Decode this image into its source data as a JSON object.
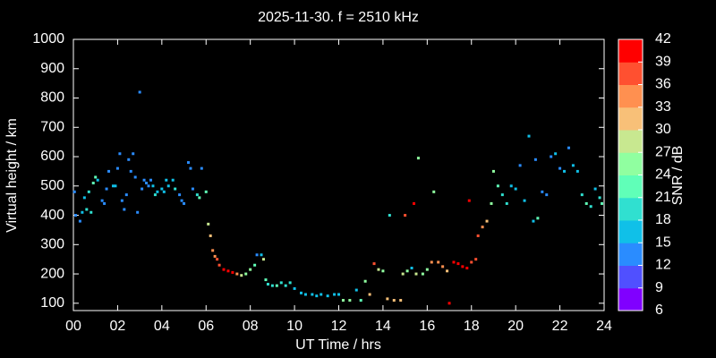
{
  "chart_data": {
    "type": "scatter",
    "title": "2025-11-30. f = 2510 kHz",
    "x_label": "UT Time / hrs",
    "y_label": "Virtual height / km",
    "colorbar_label": "SNR / dB",
    "xlim": [
      0,
      24
    ],
    "xticks": [
      {
        "value": 0,
        "label": "00"
      },
      {
        "value": 2,
        "label": "02"
      },
      {
        "value": 4,
        "label": "04"
      },
      {
        "value": 6,
        "label": "06"
      },
      {
        "value": 8,
        "label": "08"
      },
      10,
      12,
      14,
      16,
      18,
      20,
      22,
      24
    ],
    "ylim": [
      75,
      1000
    ],
    "yticks": [
      100,
      200,
      300,
      400,
      500,
      600,
      700,
      800,
      900,
      1000
    ],
    "clim": [
      6,
      42
    ],
    "cticks": [
      6,
      9,
      12,
      15,
      18,
      21,
      24,
      27,
      30,
      33,
      36,
      39,
      42
    ],
    "colormap": [
      "#8000ff",
      "#5050ff",
      "#2a8cff",
      "#10c0e8",
      "#30e0d0",
      "#60ffb8",
      "#90ffa0",
      "#c8e890",
      "#f8c078",
      "#ff9050",
      "#ff5030",
      "#ff0000"
    ],
    "x": [
      0.05,
      0.1,
      0.3,
      0.4,
      0.5,
      0.6,
      0.7,
      0.8,
      0.9,
      1.0,
      1.1,
      1.3,
      1.4,
      1.5,
      1.6,
      1.8,
      1.9,
      2.0,
      2.1,
      2.2,
      2.3,
      2.4,
      2.5,
      2.6,
      2.7,
      2.8,
      2.9,
      3.0,
      3.1,
      3.2,
      3.3,
      3.4,
      3.5,
      3.6,
      3.7,
      3.8,
      4.0,
      4.1,
      4.2,
      4.3,
      4.5,
      4.6,
      4.8,
      4.9,
      5.0,
      5.2,
      5.3,
      5.4,
      5.6,
      5.7,
      5.8,
      6.0,
      6.1,
      6.2,
      6.3,
      6.4,
      6.5,
      6.6,
      6.8,
      7.0,
      7.2,
      7.4,
      7.6,
      7.8,
      8.0,
      8.2,
      8.3,
      8.5,
      8.6,
      8.7,
      8.8,
      9.0,
      9.2,
      9.4,
      9.6,
      9.8,
      10.0,
      10.3,
      10.5,
      10.8,
      11.0,
      11.2,
      11.5,
      11.8,
      12.0,
      12.2,
      12.5,
      12.8,
      13.0,
      13.2,
      13.4,
      13.6,
      13.8,
      14.0,
      14.2,
      14.5,
      14.8,
      14.3,
      14.9,
      15.0,
      15.1,
      15.3,
      15.4,
      15.5,
      15.6,
      15.8,
      16.0,
      16.2,
      16.5,
      16.7,
      16.9,
      16.3,
      17.0,
      17.2,
      17.4,
      17.6,
      17.8,
      18.0,
      18.2,
      18.3,
      18.5,
      18.7,
      17.9,
      18.9,
      19.0,
      19.2,
      19.4,
      19.6,
      19.8,
      20.0,
      20.2,
      20.4,
      20.6,
      20.8,
      20.9,
      21.0,
      21.2,
      21.4,
      21.6,
      21.8,
      22.0,
      22.2,
      22.4,
      22.6,
      22.8,
      23.0,
      23.2,
      23.4,
      23.6,
      23.8,
      23.9
    ],
    "values": [
      480,
      400,
      380,
      410,
      460,
      420,
      480,
      410,
      510,
      530,
      520,
      450,
      440,
      490,
      550,
      500,
      500,
      560,
      610,
      450,
      420,
      470,
      590,
      550,
      610,
      530,
      410,
      820,
      490,
      520,
      510,
      500,
      520,
      500,
      470,
      480,
      490,
      480,
      520,
      500,
      520,
      490,
      470,
      450,
      440,
      580,
      560,
      490,
      470,
      460,
      560,
      480,
      370,
      330,
      280,
      260,
      250,
      230,
      215,
      210,
      205,
      200,
      195,
      200,
      215,
      230,
      265,
      265,
      250,
      180,
      165,
      160,
      160,
      170,
      160,
      170,
      150,
      135,
      130,
      130,
      125,
      130,
      125,
      130,
      130,
      110,
      110,
      145,
      110,
      175,
      130,
      235,
      215,
      210,
      115,
      110,
      110,
      400,
      200,
      400,
      210,
      220,
      440,
      200,
      595,
      200,
      215,
      240,
      240,
      225,
      210,
      480,
      100,
      240,
      235,
      225,
      220,
      240,
      250,
      330,
      360,
      380,
      450,
      440,
      550,
      500,
      470,
      440,
      500,
      490,
      570,
      450,
      670,
      380,
      590,
      390,
      480,
      470,
      600,
      610,
      560,
      550,
      630,
      570,
      550,
      470,
      440,
      430,
      490,
      460,
      440
    ],
    "snr": [
      12,
      12,
      12,
      15,
      15,
      18,
      18,
      18,
      21,
      21,
      15,
      12,
      12,
      12,
      12,
      15,
      15,
      12,
      12,
      12,
      12,
      12,
      12,
      12,
      12,
      12,
      12,
      12,
      12,
      12,
      12,
      12,
      12,
      15,
      18,
      15,
      15,
      15,
      15,
      15,
      15,
      18,
      12,
      12,
      12,
      12,
      12,
      12,
      18,
      21,
      12,
      21,
      27,
      30,
      33,
      33,
      36,
      36,
      39,
      39,
      39,
      33,
      27,
      24,
      24,
      21,
      12,
      15,
      27,
      21,
      18,
      18,
      21,
      18,
      18,
      18,
      15,
      15,
      15,
      15,
      15,
      15,
      15,
      15,
      15,
      24,
      24,
      15,
      21,
      24,
      30,
      36,
      27,
      24,
      30,
      30,
      30,
      18,
      27,
      36,
      24,
      15,
      39,
      27,
      24,
      24,
      24,
      33,
      33,
      33,
      30,
      24,
      39,
      39,
      39,
      39,
      39,
      36,
      36,
      36,
      33,
      30,
      39,
      24,
      24,
      21,
      18,
      18,
      15,
      15,
      12,
      15,
      15,
      15,
      12,
      21,
      12,
      12,
      12,
      15,
      12,
      15,
      12,
      15,
      15,
      18,
      21,
      18,
      15,
      18,
      21
    ]
  }
}
